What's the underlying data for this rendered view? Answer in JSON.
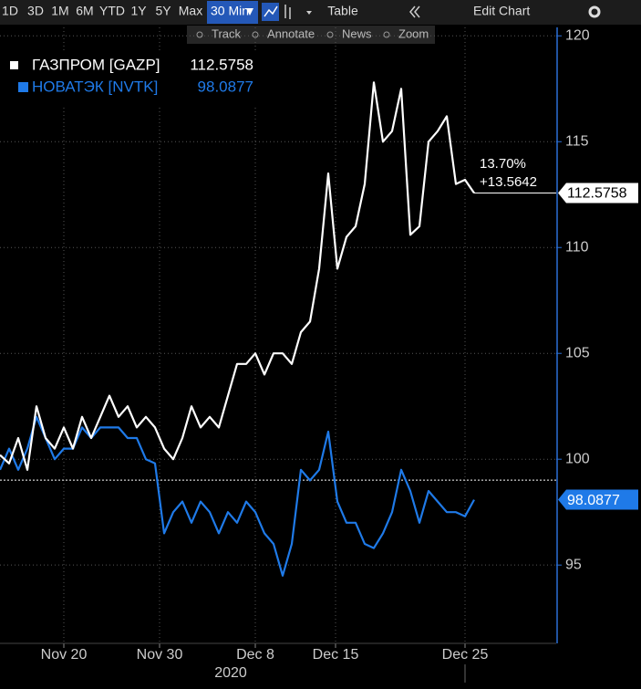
{
  "toolbar": {
    "ranges": [
      "1D",
      "3D",
      "1M",
      "6M",
      "YTD",
      "1Y",
      "5Y",
      "Max"
    ],
    "interval": "30 Min",
    "table": "Table",
    "edit": "Edit Chart",
    "tools": [
      "Track",
      "Annotate",
      "News",
      "Zoom"
    ]
  },
  "chart_data": {
    "type": "line",
    "x": [
      0,
      1,
      2,
      3,
      4,
      5,
      6,
      7,
      8,
      9,
      10,
      11,
      12,
      13,
      14,
      15,
      16,
      17,
      18,
      19,
      20,
      21,
      22,
      23,
      24,
      25,
      26,
      27,
      28,
      29,
      30,
      31,
      32,
      33,
      34,
      35,
      36,
      37,
      38,
      39,
      40,
      41,
      42,
      43,
      44,
      45,
      46,
      47,
      48,
      49,
      50,
      51,
      52
    ],
    "xlim": [
      0,
      61
    ],
    "xticks": [
      {
        "value": 7,
        "label": "Nov 20"
      },
      {
        "value": 17.5,
        "label": "Nov 30"
      },
      {
        "value": 28,
        "label": "Dec 8"
      },
      {
        "value": 36.8,
        "label": "Dec 15"
      },
      {
        "value": 51,
        "label": "Dec 25"
      }
    ],
    "x_sublabel": "2020",
    "ylim": [
      91.3,
      120.4
    ],
    "yticks": [
      95,
      100,
      105,
      110,
      115,
      120
    ],
    "grid": true,
    "reference_line": 99.0116,
    "series": [
      {
        "name": "ГАЗПРОМ [GAZP]",
        "color": "#ffffff",
        "values": [
          100.2,
          99.8,
          101,
          99.5,
          102.5,
          101,
          100.5,
          101.5,
          100.5,
          102,
          101,
          102,
          103,
          102,
          102.5,
          101.5,
          102,
          101.5,
          100.5,
          100,
          101,
          102.5,
          101.5,
          102,
          101.5,
          103,
          104.5,
          104.5,
          105,
          104,
          105,
          105,
          104.5,
          106,
          106.5,
          109,
          113.5,
          109,
          110.5,
          111,
          113,
          117.8,
          115,
          115.5,
          117.5,
          110.6,
          111,
          115,
          115.5,
          116.2,
          113,
          113.2,
          112.5758
        ]
      },
      {
        "name": "НОВАТЭК [NVTK]",
        "color": "#1f7ae8",
        "values": [
          99.5,
          100.5,
          99.5,
          100.5,
          102,
          101,
          100,
          100.5,
          100.5,
          101.5,
          101,
          101.5,
          101.5,
          101.5,
          101,
          101,
          100,
          99.8,
          96.5,
          97.5,
          98,
          97,
          98,
          97.5,
          96.5,
          97.5,
          97,
          98,
          97.5,
          96.5,
          96,
          94.5,
          96,
          99.5,
          99,
          99.5,
          101.3,
          98,
          97,
          97,
          96,
          95.8,
          96.5,
          97.5,
          99.5,
          98.5,
          97,
          98.5,
          98,
          97.5,
          97.5,
          97.3,
          98.0877
        ]
      }
    ],
    "annotations": [
      "13.70%",
      "+13.5642"
    ]
  }
}
